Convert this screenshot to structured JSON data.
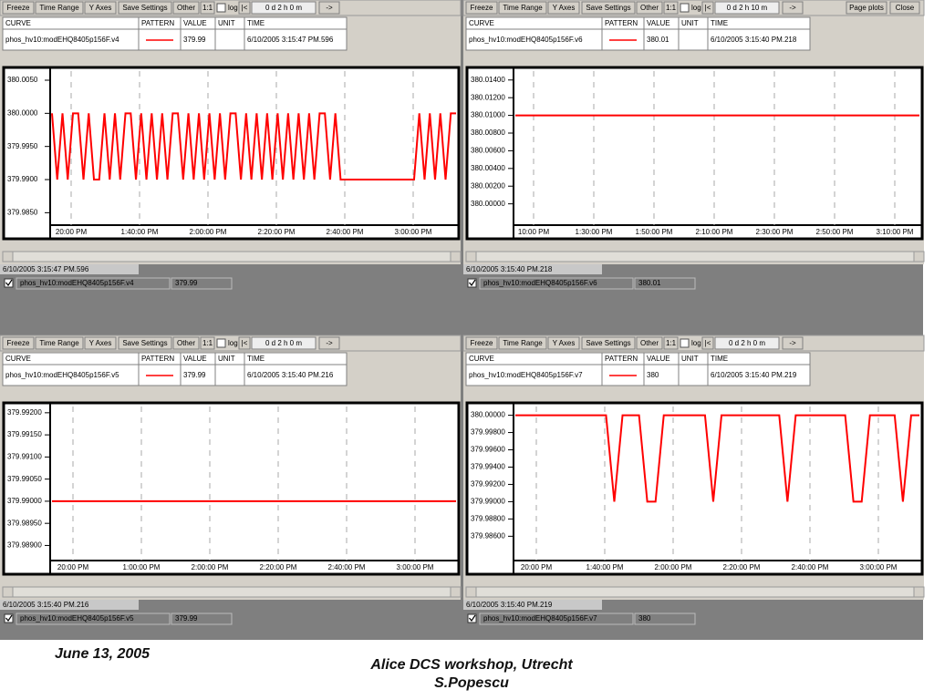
{
  "panels": [
    {
      "toolbar": {
        "buttons": [
          "Freeze",
          "Time Range",
          "Y Axes",
          "Save Settings",
          "Other",
          "1:1"
        ],
        "log": "log",
        "nav": [
          "|<",
          "0 d 2 h 0 m",
          "->"
        ]
      },
      "table": {
        "headers": [
          "CURVE",
          "PATTERN",
          "VALUE",
          "UNIT",
          "TIME"
        ],
        "curve": "phos_hv10:modEHQ8405p156F.v4",
        "value": "379.99",
        "time": "6/10/2005 3:15:47 PM.596"
      },
      "plot": {
        "color": "#ff0000",
        "ylim": [
          379.9834,
          380.0061
        ],
        "yticks": [
          {
            "value": 380.005,
            "label": "380.0050"
          },
          {
            "value": 380,
            "label": "380.0000"
          },
          {
            "value": 379.995,
            "label": "379.9950"
          },
          {
            "value": 379.99,
            "label": "379.9900"
          },
          {
            "value": 379.985,
            "label": "379.9850"
          }
        ],
        "xtick_labels": [
          "20:00 PM",
          "1:40:00 PM",
          "2:00:00 PM",
          "2:20:00 PM",
          "2:40:00 PM",
          "3:00:00 PM"
        ],
        "values": [
          380,
          379.99,
          380,
          379.99,
          380,
          380,
          379.99,
          380,
          379.99,
          379.99,
          380,
          379.99,
          380,
          379.99,
          380,
          380,
          379.99,
          380,
          379.99,
          380,
          379.99,
          380,
          379.99,
          380,
          380,
          379.99,
          380,
          379.99,
          380,
          379.99,
          380,
          379.99,
          380,
          379.99,
          380,
          380,
          379.99,
          380,
          379.99,
          380,
          379.99,
          380,
          379.99,
          380,
          379.99,
          380,
          379.99,
          380,
          379.99,
          380,
          379.99,
          380,
          380,
          379.99,
          380,
          379.99,
          379.99,
          379.99,
          379.99,
          379.99,
          379.99,
          379.99,
          379.99,
          379.99,
          379.99,
          379.99,
          379.99,
          379.99,
          379.99,
          379.99,
          380,
          379.99,
          380,
          379.99,
          380,
          379.99,
          380,
          380
        ]
      },
      "status": "6/10/2005 3:15:47 PM.596",
      "legend": {
        "name": "phos_hv10:modEHQ8405p156F.v4",
        "value": "379.99"
      }
    },
    {
      "toolbar": {
        "buttons": [
          "Freeze",
          "Time Range",
          "Y Axes",
          "Save Settings",
          "Other",
          "1:1"
        ],
        "log": "log",
        "nav": [
          "|<",
          "0 d 2 h 10 m",
          "->"
        ],
        "window_buttons": [
          "Page plots",
          "Close"
        ]
      },
      "table": {
        "headers": [
          "CURVE",
          "PATTERN",
          "VALUE",
          "UNIT",
          "TIME"
        ],
        "curve": "phos_hv10:modEHQ8405p156F.v6",
        "value": "380.01",
        "time": "6/10/2005 3:15:40 PM.218"
      },
      "plot": {
        "color": "#ff0000",
        "ylim": [
          379.9978,
          380.0148
        ],
        "yticks": [
          {
            "value": 380.014,
            "label": "380.01400"
          },
          {
            "value": 380.012,
            "label": "380.01200"
          },
          {
            "value": 380.01,
            "label": "380.01000"
          },
          {
            "value": 380.008,
            "label": "380.00800"
          },
          {
            "value": 380.006,
            "label": "380.00600"
          },
          {
            "value": 380.004,
            "label": "380.00400"
          },
          {
            "value": 380.002,
            "label": "380.00200"
          },
          {
            "value": 380,
            "label": "380.00000"
          }
        ],
        "xtick_labels": [
          "10:00 PM",
          "1:30:00 PM",
          "1:50:00 PM",
          "2:10:00 PM",
          "2:30:00 PM",
          "2:50:00 PM",
          "3:10:00 PM"
        ],
        "values": [
          380.01,
          380.01,
          380.01,
          380.01,
          380.01,
          380.01,
          380.01,
          380.01,
          380.01,
          380.01,
          380.01,
          380.01,
          380.01,
          380.01,
          380.01,
          380.01,
          380.01,
          380.01,
          380.01,
          380.01
        ]
      },
      "status": "6/10/2005 3:15:40 PM.218",
      "legend": {
        "name": "phos_hv10:modEHQ8405p156F.v6",
        "value": "380.01"
      }
    },
    {
      "toolbar": {
        "buttons": [
          "Freeze",
          "Time Range",
          "Y Axes",
          "Save Settings",
          "Other",
          "1:1"
        ],
        "log": "log",
        "nav": [
          "|<",
          "0 d 2 h 0 m",
          "->"
        ]
      },
      "table": {
        "headers": [
          "CURVE",
          "PATTERN",
          "VALUE",
          "UNIT",
          "TIME"
        ],
        "curve": "phos_hv10:modEHQ8405p156F.v5",
        "value": "379.99",
        "time": "6/10/2005 3:15:40 PM.216"
      },
      "plot": {
        "color": "#ff0000",
        "ylim": [
          379.9887,
          379.9921
        ],
        "yticks": [
          {
            "value": 379.992,
            "label": "379.99200"
          },
          {
            "value": 379.9915,
            "label": "379.99150"
          },
          {
            "value": 379.991,
            "label": "379.99100"
          },
          {
            "value": 379.9905,
            "label": "379.99050"
          },
          {
            "value": 379.99,
            "label": "379.99000"
          },
          {
            "value": 379.9895,
            "label": "379.98950"
          },
          {
            "value": 379.989,
            "label": "379.98900"
          }
        ],
        "xtick_labels": [
          "20:00 PM",
          "1:00:00 PM",
          "2:00:00 PM",
          "2:20:00 PM",
          "2:40:00 PM",
          "3:00:00 PM"
        ],
        "values": [
          379.99,
          379.99,
          379.99,
          379.99,
          379.99,
          379.99,
          379.99,
          379.99,
          379.99,
          379.99,
          379.99,
          379.99,
          379.99,
          379.99,
          379.99,
          379.99,
          379.99,
          379.99,
          379.99,
          379.99
        ]
      },
      "status": "6/10/2005 3:15:40 PM.216",
      "legend": {
        "name": "phos_hv10:modEHQ8405p156F.v5",
        "value": "379.99"
      }
    },
    {
      "toolbar": {
        "buttons": [
          "Freeze",
          "Time Range",
          "Y Axes",
          "Save Settings",
          "Other",
          "1:1"
        ],
        "log": "log",
        "nav": [
          "|<",
          "0 d 2 h 0 m",
          "->"
        ]
      },
      "table": {
        "headers": [
          "CURVE",
          "PATTERN",
          "VALUE",
          "UNIT",
          "TIME"
        ],
        "curve": "phos_hv10:modEHQ8405p156F.v7",
        "value": "380",
        "time": "6/10/2005 3:15:40 PM.219"
      },
      "plot": {
        "color": "#ff0000",
        "ylim": [
          379.9834,
          380.0008
        ],
        "yticks": [
          {
            "value": 380,
            "label": "380.00000"
          },
          {
            "value": 379.998,
            "label": "379.99800"
          },
          {
            "value": 379.996,
            "label": "379.99600"
          },
          {
            "value": 379.994,
            "label": "379.99400"
          },
          {
            "value": 379.992,
            "label": "379.99200"
          },
          {
            "value": 379.99,
            "label": "379.99000"
          },
          {
            "value": 379.988,
            "label": "379.98800"
          },
          {
            "value": 379.986,
            "label": "379.98600"
          }
        ],
        "xtick_labels": [
          "20:00 PM",
          "1:40:00 PM",
          "2:00:00 PM",
          "2:20:00 PM",
          "2:40:00 PM",
          "3:00:00 PM"
        ],
        "values": [
          380,
          380,
          380,
          380,
          380,
          380,
          380,
          380,
          380,
          380,
          380,
          380,
          379.99,
          380,
          380,
          380,
          379.99,
          379.99,
          380,
          380,
          380,
          380,
          380,
          380,
          379.99,
          380,
          380,
          380,
          380,
          380,
          380,
          380,
          380,
          379.99,
          380,
          380,
          380,
          380,
          380,
          380,
          380,
          379.99,
          379.99,
          380,
          380,
          380,
          380,
          379.99,
          380,
          380
        ]
      },
      "status": "6/10/2005 3:15:40 PM.219",
      "legend": {
        "name": "phos_hv10:modEHQ8405p156F.v7",
        "value": "380"
      }
    }
  ],
  "footer": {
    "date": "June 13, 2005",
    "event": "Alice DCS workshop, Utrecht",
    "author": "S.Popescu"
  }
}
